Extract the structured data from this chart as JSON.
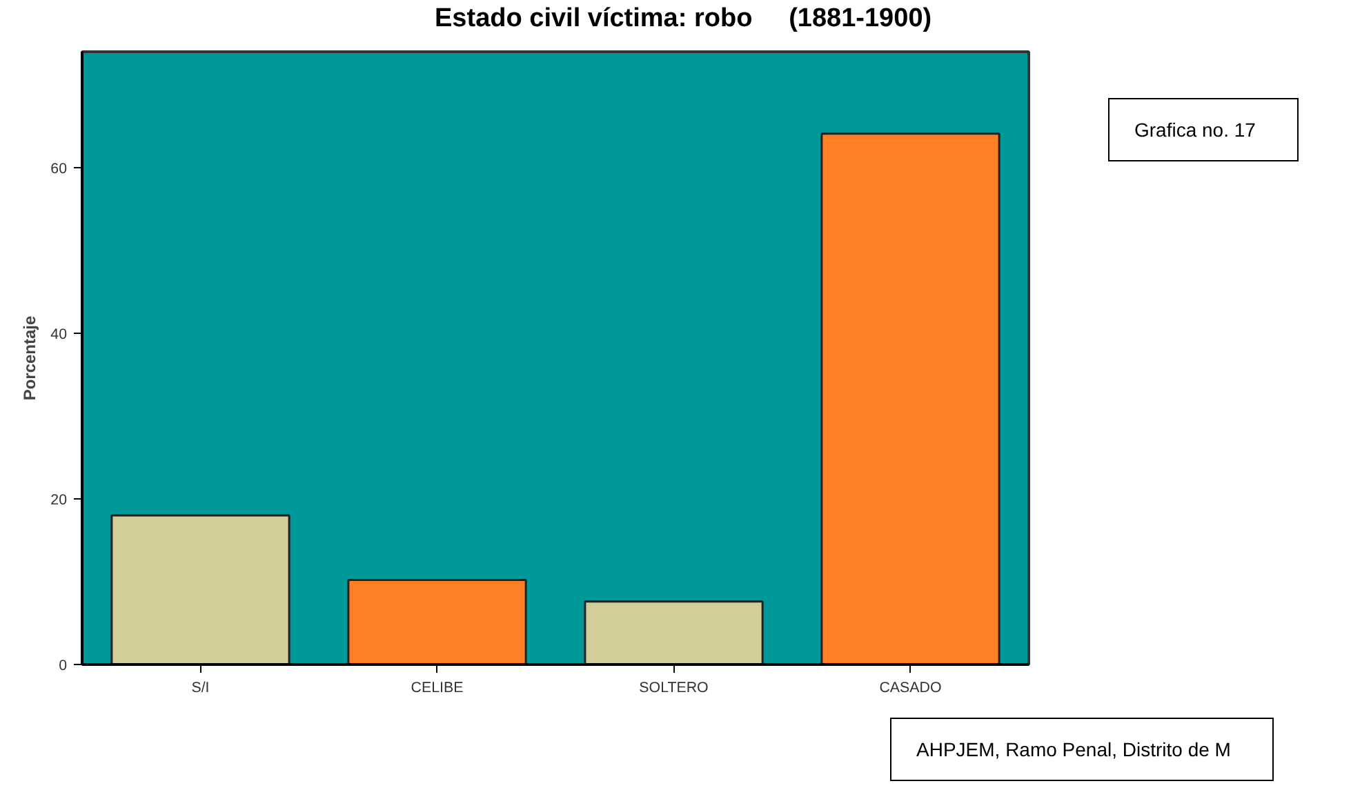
{
  "chart_data": {
    "type": "bar",
    "title": "Estado civil víctima: robo     (1881-1900)",
    "ylabel": "Porcentaje",
    "categories": [
      "S/I",
      "CELIBE",
      "SOLTERO",
      "CASADO"
    ],
    "values": [
      18.0,
      10.2,
      7.6,
      64.1
    ],
    "colors": [
      "#d3cd99",
      "#ff7f27",
      "#d3cd99",
      "#ff7f27"
    ],
    "ylim": [
      0,
      74
    ],
    "yticks": [
      0,
      20,
      40,
      60
    ],
    "grid": false,
    "annotations": [
      "Grafica no. 17",
      "AHPJEM, Ramo Penal, Distrito de M"
    ]
  }
}
